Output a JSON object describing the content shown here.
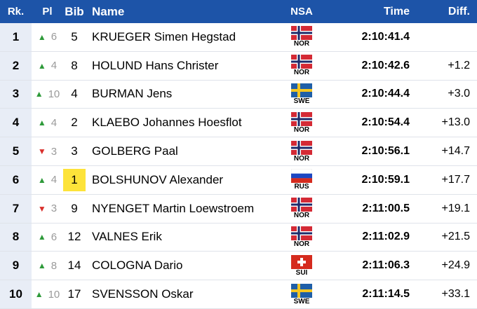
{
  "table": {
    "columns": [
      "Rk.",
      "Pl",
      "Bib",
      "Name",
      "NSA",
      "Time",
      "Diff."
    ],
    "rows": [
      {
        "rank": 1,
        "arrow": "▲",
        "arrow_color": "#2e9a3a",
        "place": 6,
        "bib": 5,
        "name": "KRUEGER Simen Hegstad",
        "nsa": "NOR",
        "time": "2:10:41.4"
      },
      {
        "rank": 2,
        "arrow": "▲",
        "arrow_color": "#2e9a3a",
        "place": 4,
        "bib": 8,
        "name": "HOLUND Hans Christer",
        "nsa": "NOR",
        "time": "2:10:42.6",
        "diff": "+1.2"
      },
      {
        "rank": 3,
        "arrow": "▲",
        "arrow_color": "#2e9a3a",
        "place": 10,
        "bib": 4,
        "name": "BURMAN Jens",
        "nsa": "SWE",
        "time": "2:10:44.4",
        "diff": "+3.0"
      },
      {
        "rank": 4,
        "arrow": "▲",
        "arrow_color": "#2e9a3a",
        "place": 4,
        "bib": 2,
        "name": "KLAEBO Johannes Hoesflot",
        "nsa": "NOR",
        "time": "2:10:54.4",
        "diff": "+13.0"
      },
      {
        "rank": 5,
        "arrow": "▼",
        "arrow_color": "#d9302c",
        "place": 3,
        "bib": 3,
        "name": "GOLBERG Paal",
        "nsa": "NOR",
        "time": "2:10:56.1",
        "diff": "+14.7"
      },
      {
        "rank": 6,
        "arrow": "▲",
        "arrow_color": "#2e9a3a",
        "place": 4,
        "bib": 1,
        "bib_highlight": "#fde33a",
        "name": "BOLSHUNOV Alexander",
        "nsa": "RUS",
        "time": "2:10:59.1",
        "diff": "+17.7"
      },
      {
        "rank": 7,
        "arrow": "▼",
        "arrow_color": "#d9302c",
        "place": 3,
        "bib": 9,
        "name": "NYENGET Martin Loewstroem",
        "nsa": "NOR",
        "time": "2:11:00.5",
        "diff": "+19.1"
      },
      {
        "rank": 8,
        "arrow": "▲",
        "arrow_color": "#2e9a3a",
        "place": 6,
        "bib": 12,
        "name": "VALNES Erik",
        "nsa": "NOR",
        "time": "2:11:02.9",
        "diff": "+21.5"
      },
      {
        "rank": 9,
        "arrow": "▲",
        "arrow_color": "#2e9a3a",
        "place": 8,
        "bib": 14,
        "name": "COLOGNA Dario",
        "nsa": "SUI",
        "time": "2:11:06.3",
        "diff": "+24.9"
      },
      {
        "rank": 10,
        "arrow": "▲",
        "arrow_color": "#2e9a3a",
        "place": 10,
        "bib": 17,
        "name": "SVENSSON Oskar",
        "nsa": "SWE",
        "time": "2:11:14.5",
        "diff": "+33.1"
      }
    ]
  }
}
